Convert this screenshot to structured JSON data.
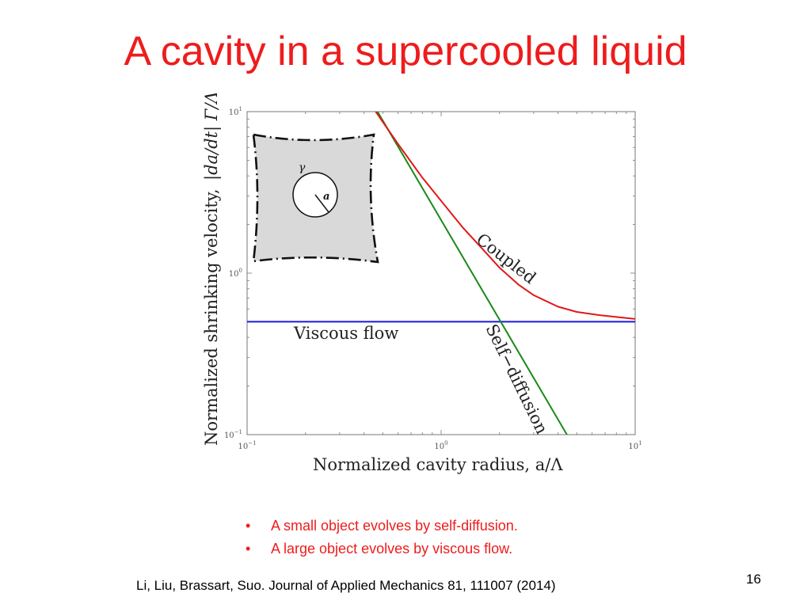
{
  "slide": {
    "title": "A cavity in a supercooled liquid",
    "bullets": [
      "A small object evolves by self-diffusion.",
      "A large object evolves by viscous flow."
    ],
    "citation": "Li, Liu, Brassart, Suo.  Journal of Applied Mechanics 81, 111007 (2014)",
    "page_number": "16"
  },
  "inset": {
    "gamma_label": "γ",
    "radius_label": "a"
  },
  "colors": {
    "title": "#ee1c1c",
    "viscous": "#1a1adc",
    "self_diffusion": "#1a8a1a",
    "coupled": "#e01818"
  },
  "chart_data": {
    "type": "line",
    "xlabel": "Normalized cavity radius,  a/Λ",
    "ylabel": "Normalized  shrinking  velocity,",
    "ylabel_math": "|da/dt| Γ/Λ",
    "xscale": "log",
    "yscale": "log",
    "xlim": [
      0.1,
      10
    ],
    "ylim": [
      0.1,
      10
    ],
    "x_ticks": [
      {
        "base": "10",
        "exp": "−1"
      },
      {
        "base": "10",
        "exp": "0"
      },
      {
        "base": "10",
        "exp": "1"
      }
    ],
    "y_ticks": [
      {
        "base": "10",
        "exp": "−1"
      },
      {
        "base": "10",
        "exp": "0"
      },
      {
        "base": "10",
        "exp": "1"
      }
    ],
    "series": [
      {
        "name": "Viscous flow",
        "color": "#1a1adc",
        "x": [
          0.1,
          10
        ],
        "y": [
          0.5,
          0.5
        ]
      },
      {
        "name": "Self−diffusion",
        "color": "#1a8a1a",
        "x": [
          0.47,
          4.45
        ],
        "y": [
          10,
          0.1
        ]
      },
      {
        "name": "Coupled",
        "color": "#e01818",
        "x": [
          0.46,
          0.6,
          0.8,
          1.0,
          1.3,
          1.6,
          2.0,
          2.5,
          3.0,
          4.0,
          5.0,
          6.5,
          8.0,
          10.0
        ],
        "y": [
          10,
          6.3,
          3.9,
          2.8,
          1.9,
          1.45,
          1.08,
          0.85,
          0.73,
          0.62,
          0.575,
          0.55,
          0.535,
          0.52
        ]
      }
    ]
  }
}
